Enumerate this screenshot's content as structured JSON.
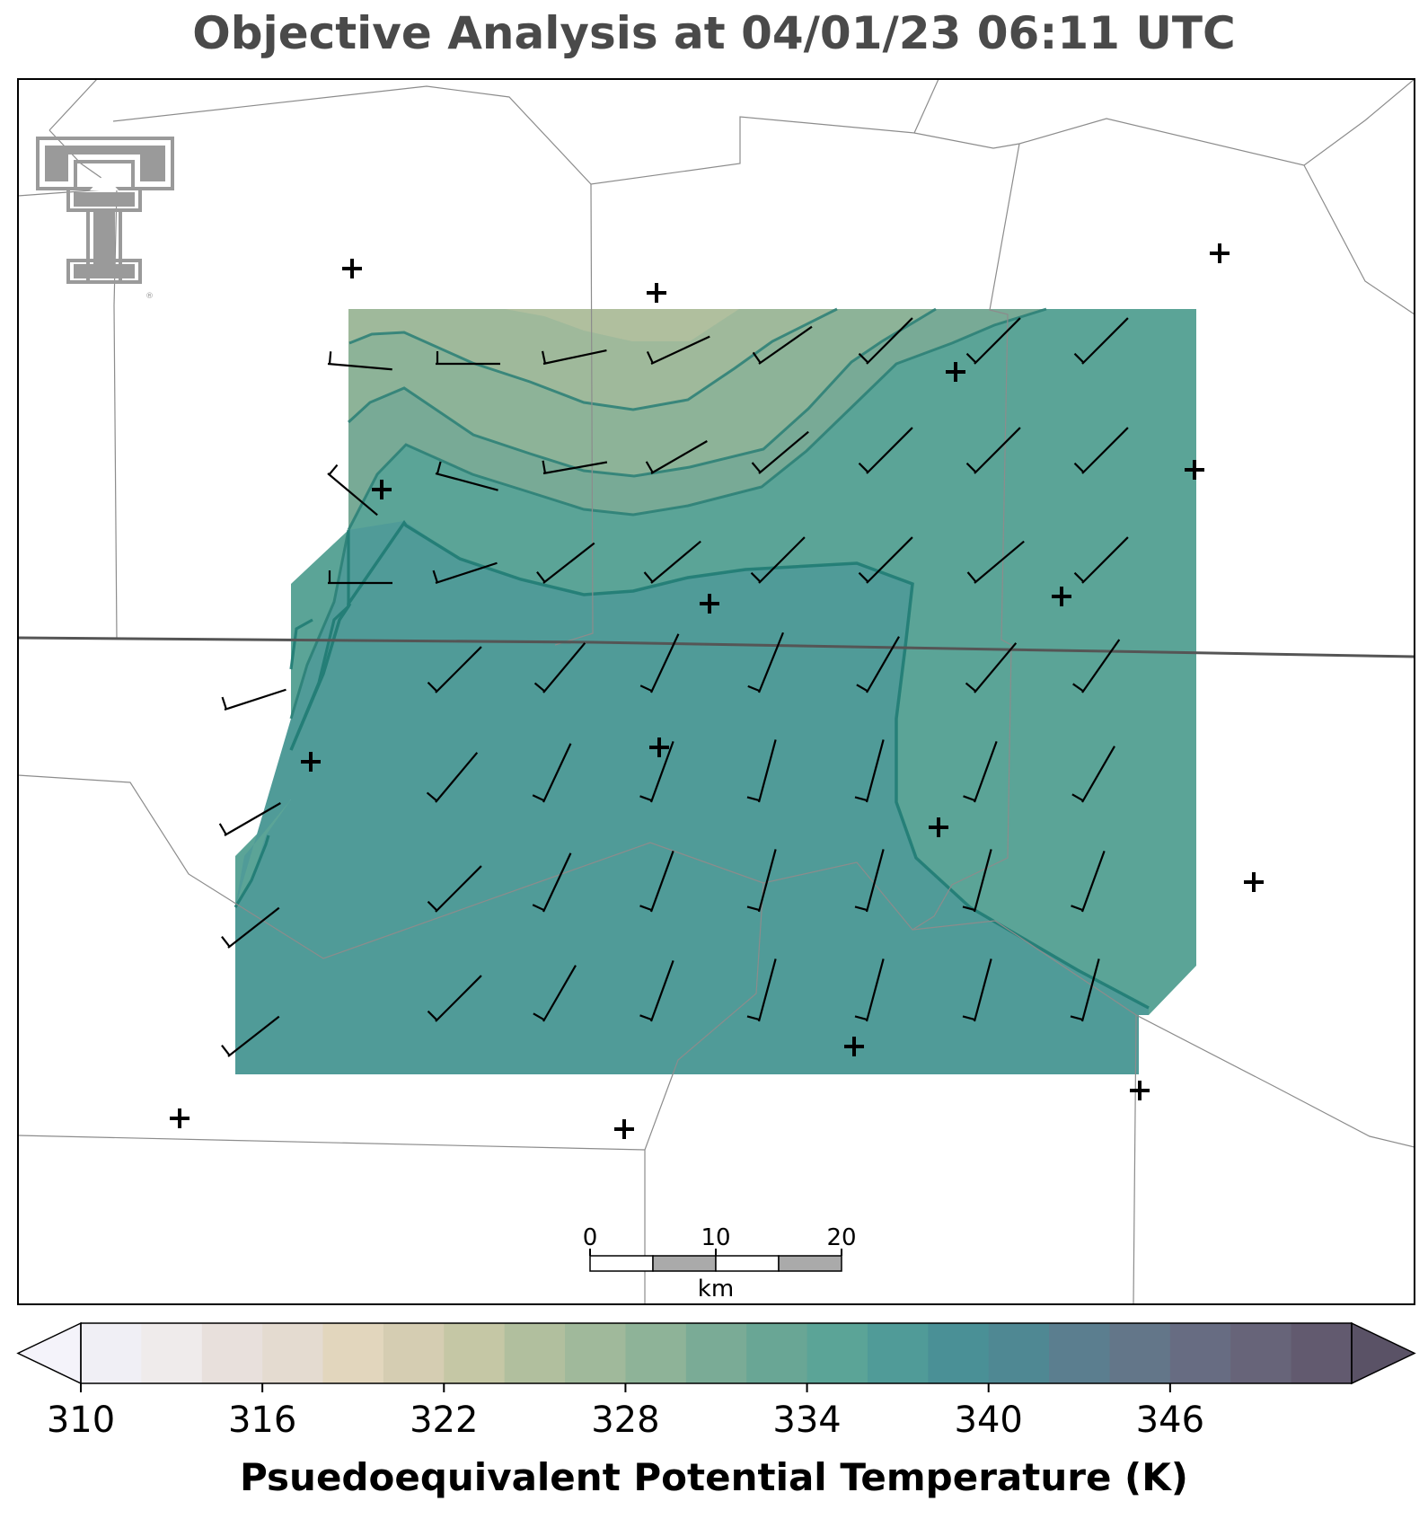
{
  "title": "Objective Analysis at 04/01/23 06:11 UTC",
  "colorbar": {
    "label": "Psuedoequivalent Potential Temperature (K)",
    "min": 310,
    "max": 352,
    "step": 2,
    "tick_labels": [
      "310",
      "316",
      "322",
      "328",
      "334",
      "340",
      "346"
    ],
    "colors": [
      "#f0eff5",
      "#efebeb",
      "#e8e0dc",
      "#e4dbd0",
      "#e2d6bd",
      "#d5cdb2",
      "#c5c7a5",
      "#b1bf9e",
      "#a0b99b",
      "#8eb398",
      "#7aab96",
      "#69a695",
      "#5ba497",
      "#509b98",
      "#4a9096",
      "#4f8893",
      "#5b7e8f",
      "#637689",
      "#676c82",
      "#676479",
      "#625a6f"
    ],
    "under_color": "#f4f3fa",
    "over_color": "#5a5266"
  },
  "scale_bar": {
    "labels": [
      "0",
      "10",
      "20"
    ],
    "unit": "km"
  },
  "logo": {
    "name": "texas-tech-double-t"
  },
  "colors": {
    "state_border": "#555555",
    "county_lines": "#8c8c8c",
    "contour": "#1f7b73"
  },
  "stations_count_note": "",
  "wind_barb_units": "kt"
}
